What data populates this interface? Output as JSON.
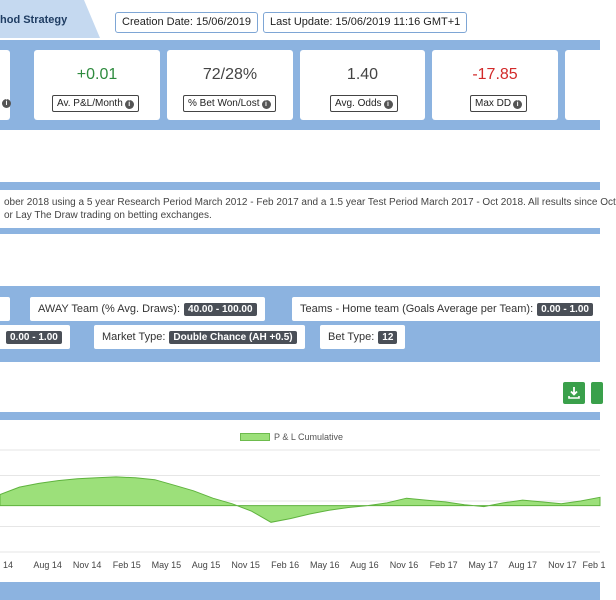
{
  "header": {
    "title": "hod Strategy",
    "creation_date": "Creation Date: 15/06/2019",
    "last_update": "Last Update: 15/06/2019 11:16 GMT+1"
  },
  "stats": [
    {
      "value": "+0.01",
      "label": "Av. P&L/Month",
      "color": "green"
    },
    {
      "value": "72/28%",
      "label": "% Bet Won/Lost",
      "color": "normal"
    },
    {
      "value": "1.40",
      "label": "Avg. Odds",
      "color": "normal"
    },
    {
      "value": "-17.85",
      "label": "Max DD",
      "color": "red"
    }
  ],
  "description": {
    "line1": "ober 2018 using a 5 year Research Period March 2012 - Feb 2017 and a 1.5 year Test Period March 2017 - Oct 2018. All results since Oct",
    "line2": "or Lay The Draw trading on betting exchanges."
  },
  "filters": {
    "away_team_label": "AWAY Team (% Avg. Draws):",
    "away_team_value": "40.00 - 100.00",
    "teams_home_label": "Teams - Home team (Goals Average per Team):",
    "teams_home_value": "0.00 - 1.00",
    "first_value": "0.00 - 1.00",
    "market_type_label": "Market Type:",
    "market_type_value": "Double Chance (AH +0.5)",
    "bet_type_label": "Bet Type:",
    "bet_type_value": "12"
  },
  "colors": {
    "band": "#8cb3e0",
    "area_fill": "#9ce07a",
    "area_stroke": "#5fb33e",
    "download": "#3aa04b"
  },
  "chart_data": {
    "type": "area",
    "legend": "P & L Cumulative",
    "legend_position": "top-center",
    "grid": true,
    "x_labels": [
      "14",
      "Aug 14",
      "Nov 14",
      "Feb 15",
      "May 15",
      "Aug 15",
      "Nov 15",
      "Feb 16",
      "May 16",
      "Aug 16",
      "Nov 16",
      "Feb 17",
      "May 17",
      "Aug 17",
      "Nov 17",
      "Feb 1"
    ],
    "y_range": [
      -5,
      6
    ],
    "values": [
      1.2,
      2.0,
      2.4,
      2.7,
      2.9,
      3.0,
      3.1,
      3.0,
      2.8,
      2.2,
      1.6,
      0.8,
      0.2,
      -0.6,
      -1.8,
      -1.4,
      -0.9,
      -0.5,
      -0.2,
      0.0,
      0.3,
      0.8,
      0.6,
      0.4,
      0.1,
      -0.1,
      0.3,
      0.6,
      0.4,
      0.2,
      0.5,
      0.9
    ]
  }
}
